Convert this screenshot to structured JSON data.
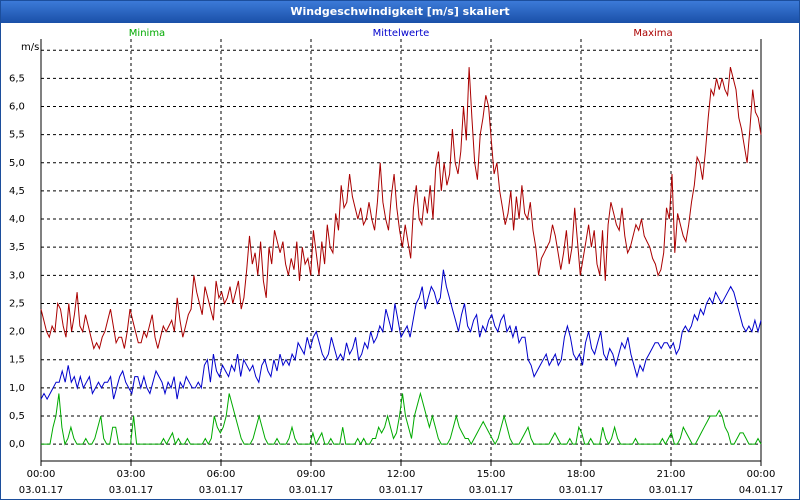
{
  "window": {
    "title": "Windgeschwindigkeit [m/s] skaliert"
  },
  "chart_data": {
    "type": "line",
    "title": "Windgeschwindigkeit [m/s] skaliert",
    "ylabel": "m/s",
    "ylim": [
      -0.3,
      7.2
    ],
    "yticks": [
      {
        "v": 0.0,
        "label": "0,0"
      },
      {
        "v": 0.5,
        "label": "0,5"
      },
      {
        "v": 1.0,
        "label": "1,0"
      },
      {
        "v": 1.5,
        "label": "1,5"
      },
      {
        "v": 2.0,
        "label": "2,0"
      },
      {
        "v": 2.5,
        "label": "2,5"
      },
      {
        "v": 3.0,
        "label": "3,0"
      },
      {
        "v": 3.5,
        "label": "3,5"
      },
      {
        "v": 4.0,
        "label": "4,0"
      },
      {
        "v": 4.5,
        "label": "4,5"
      },
      {
        "v": 5.0,
        "label": "5,0"
      },
      {
        "v": 5.5,
        "label": "5,5"
      },
      {
        "v": 6.0,
        "label": "6,0"
      },
      {
        "v": 6.5,
        "label": "6,5"
      }
    ],
    "xlim": [
      0,
      24
    ],
    "xticks": [
      {
        "h": 0,
        "time": "00:00",
        "date": "03.01.17"
      },
      {
        "h": 3,
        "time": "03:00",
        "date": "03.01.17"
      },
      {
        "h": 6,
        "time": "06:00",
        "date": "03.01.17"
      },
      {
        "h": 9,
        "time": "09:00",
        "date": "03.01.17"
      },
      {
        "h": 12,
        "time": "12:00",
        "date": "03.01.17"
      },
      {
        "h": 15,
        "time": "15:00",
        "date": "03.01.17"
      },
      {
        "h": 18,
        "time": "18:00",
        "date": "03.01.17"
      },
      {
        "h": 21,
        "time": "21:00",
        "date": "03.01.17"
      },
      {
        "h": 24,
        "time": "00:00",
        "date": "04.01.17"
      }
    ],
    "grid": true,
    "legend_position": "top",
    "series": [
      {
        "name": "Minima",
        "color": "#00aa00",
        "values": [
          0.0,
          0.0,
          0.0,
          0.0,
          0.3,
          0.5,
          0.9,
          0.3,
          0.0,
          0.1,
          0.3,
          0.1,
          0.0,
          0.0,
          0.0,
          0.1,
          0.0,
          0.0,
          0.1,
          0.3,
          0.5,
          0.1,
          0.0,
          0.0,
          0.3,
          0.3,
          0.0,
          0.0,
          0.0,
          0.0,
          0.0,
          0.5,
          0.0,
          0.0,
          0.0,
          0.0,
          0.0,
          0.0,
          0.0,
          0.0,
          0.0,
          0.1,
          0.0,
          0.1,
          0.2,
          0.0,
          0.1,
          0.0,
          0.0,
          0.1,
          0.0,
          0.0,
          0.0,
          0.0,
          0.0,
          0.1,
          0.0,
          0.1,
          0.5,
          0.3,
          0.2,
          0.3,
          0.5,
          0.9,
          0.7,
          0.5,
          0.3,
          0.1,
          0.0,
          0.0,
          0.0,
          0.1,
          0.3,
          0.5,
          0.3,
          0.1,
          0.0,
          0.0,
          0.0,
          0.1,
          0.0,
          0.0,
          0.0,
          0.1,
          0.3,
          0.1,
          0.0,
          0.0,
          0.0,
          0.0,
          0.0,
          0.2,
          0.0,
          0.1,
          0.2,
          0.0,
          0.0,
          0.1,
          0.0,
          0.0,
          0.0,
          0.3,
          0.0,
          0.0,
          0.0,
          0.0,
          0.1,
          0.0,
          0.1,
          0.0,
          0.0,
          0.1,
          0.1,
          0.3,
          0.2,
          0.3,
          0.5,
          0.3,
          0.1,
          0.2,
          0.5,
          0.9,
          0.5,
          0.3,
          0.1,
          0.5,
          0.7,
          0.9,
          0.7,
          0.5,
          0.3,
          0.5,
          0.3,
          0.1,
          0.0,
          0.0,
          0.0,
          0.1,
          0.3,
          0.5,
          0.3,
          0.2,
          0.1,
          0.1,
          0.0,
          0.1,
          0.2,
          0.3,
          0.4,
          0.3,
          0.2,
          0.1,
          0.0,
          0.1,
          0.3,
          0.5,
          0.3,
          0.1,
          0.0,
          0.0,
          0.0,
          0.1,
          0.2,
          0.3,
          0.1,
          0.0,
          0.0,
          0.0,
          0.0,
          0.0,
          0.0,
          0.1,
          0.2,
          0.1,
          0.0,
          0.0,
          0.0,
          0.1,
          0.0,
          0.0,
          0.3,
          0.2,
          0.0,
          0.0,
          0.1,
          0.0,
          0.0,
          0.0,
          0.3,
          0.1,
          0.0,
          0.1,
          0.3,
          0.1,
          0.0,
          0.0,
          0.0,
          0.0,
          0.0,
          0.1,
          0.0,
          0.0,
          0.0,
          0.0,
          0.0,
          0.0,
          0.0,
          0.0,
          0.1,
          0.0,
          0.1,
          0.2,
          0.0,
          0.0,
          0.1,
          0.3,
          0.2,
          0.1,
          0.0,
          0.0,
          0.1,
          0.2,
          0.3,
          0.4,
          0.5,
          0.5,
          0.5,
          0.6,
          0.5,
          0.3,
          0.2,
          0.0,
          0.0,
          0.1,
          0.2,
          0.2,
          0.1,
          0.0,
          0.0,
          0.0,
          0.1,
          0.0
        ]
      },
      {
        "name": "Mittelwerte",
        "color": "#0000cc",
        "values": [
          0.8,
          0.9,
          0.8,
          0.9,
          1.0,
          1.1,
          1.1,
          1.3,
          1.1,
          1.4,
          1.1,
          1.2,
          1.0,
          1.2,
          1.0,
          1.1,
          1.2,
          0.9,
          1.0,
          1.1,
          1.0,
          1.1,
          1.1,
          1.2,
          0.8,
          1.0,
          1.2,
          1.3,
          1.1,
          1.0,
          0.9,
          1.2,
          1.2,
          1.0,
          1.2,
          1.0,
          0.9,
          1.1,
          1.3,
          1.2,
          1.1,
          0.9,
          1.1,
          1.0,
          1.2,
          0.8,
          1.1,
          1.0,
          1.2,
          1.1,
          1.0,
          1.0,
          1.1,
          1.0,
          1.4,
          1.5,
          1.1,
          1.6,
          1.3,
          1.2,
          1.4,
          1.3,
          1.2,
          1.4,
          1.3,
          1.6,
          1.2,
          1.5,
          1.4,
          1.3,
          1.4,
          1.2,
          1.1,
          1.4,
          1.5,
          1.3,
          1.2,
          1.5,
          1.3,
          1.6,
          1.4,
          1.5,
          1.4,
          1.6,
          1.5,
          1.8,
          1.7,
          1.6,
          1.9,
          1.7,
          1.9,
          2.0,
          1.8,
          1.6,
          1.5,
          1.6,
          1.9,
          1.7,
          1.5,
          1.6,
          1.5,
          1.8,
          1.6,
          1.7,
          1.9,
          1.5,
          1.6,
          1.8,
          1.7,
          2.0,
          1.8,
          1.9,
          2.1,
          2.0,
          2.4,
          2.2,
          2.0,
          2.5,
          2.2,
          1.9,
          2.0,
          2.1,
          1.9,
          2.2,
          2.5,
          2.6,
          2.8,
          2.4,
          2.6,
          2.8,
          2.7,
          2.5,
          2.6,
          3.1,
          2.8,
          2.6,
          2.4,
          2.2,
          2.0,
          2.3,
          2.5,
          2.1,
          2.0,
          2.2,
          2.3,
          1.9,
          2.1,
          2.0,
          2.2,
          2.3,
          2.1,
          2.0,
          2.2,
          2.3,
          2.0,
          2.1,
          1.9,
          2.1,
          1.8,
          1.9,
          1.9,
          1.5,
          1.4,
          1.2,
          1.3,
          1.4,
          1.5,
          1.6,
          1.4,
          1.5,
          1.6,
          1.4,
          1.5,
          1.9,
          2.1,
          1.9,
          1.6,
          1.5,
          1.6,
          1.4,
          1.8,
          2.0,
          1.7,
          1.6,
          1.8,
          2.0,
          1.6,
          1.5,
          1.7,
          1.6,
          1.4,
          1.6,
          1.8,
          1.7,
          1.9,
          1.6,
          1.4,
          1.2,
          1.4,
          1.3,
          1.5,
          1.6,
          1.7,
          1.8,
          1.8,
          1.7,
          1.8,
          1.8,
          1.7,
          1.8,
          1.6,
          1.7,
          2.0,
          2.1,
          2.0,
          2.1,
          2.3,
          2.2,
          2.4,
          2.3,
          2.5,
          2.6,
          2.5,
          2.7,
          2.6,
          2.5,
          2.6,
          2.7,
          2.8,
          2.7,
          2.5,
          2.3,
          2.1,
          2.0,
          2.1,
          2.0,
          2.2,
          2.0,
          2.2
        ]
      },
      {
        "name": "Maxima",
        "color": "#aa0000",
        "values": [
          2.4,
          2.2,
          2.0,
          1.9,
          2.1,
          2.0,
          2.5,
          2.4,
          2.1,
          1.9,
          2.5,
          2.0,
          2.3,
          2.7,
          2.1,
          2.0,
          2.3,
          2.1,
          1.9,
          1.7,
          1.8,
          1.7,
          1.9,
          2.0,
          2.2,
          2.4,
          2.1,
          1.8,
          1.9,
          1.9,
          1.7,
          2.0,
          2.4,
          2.2,
          2.0,
          1.8,
          1.8,
          2.0,
          1.9,
          2.1,
          2.3,
          1.9,
          1.7,
          1.9,
          2.1,
          2.0,
          2.1,
          2.2,
          2.0,
          2.6,
          2.2,
          1.9,
          2.1,
          2.3,
          2.4,
          3.0,
          2.7,
          2.5,
          2.3,
          2.8,
          2.6,
          2.4,
          2.2,
          2.9,
          2.6,
          2.7,
          2.5,
          2.6,
          2.8,
          2.5,
          2.7,
          2.9,
          2.4,
          2.6,
          3.1,
          3.7,
          3.2,
          3.4,
          3.0,
          3.6,
          2.9,
          2.6,
          3.5,
          3.2,
          3.8,
          3.6,
          3.4,
          3.6,
          3.2,
          3.0,
          3.3,
          3.1,
          3.6,
          2.9,
          3.5,
          3.2,
          3.3,
          3.0,
          3.8,
          3.4,
          3.0,
          3.6,
          3.2,
          3.9,
          3.5,
          3.4,
          4.1,
          3.8,
          4.6,
          4.2,
          4.3,
          4.8,
          4.4,
          4.2,
          4.0,
          4.2,
          3.9,
          4.0,
          4.3,
          4.0,
          3.8,
          4.3,
          5.0,
          4.3,
          4.0,
          3.8,
          4.4,
          4.8,
          4.2,
          3.8,
          3.5,
          3.9,
          3.6,
          3.3,
          4.2,
          4.6,
          4.0,
          3.9,
          4.4,
          4.1,
          4.6,
          4.0,
          4.9,
          5.2,
          4.5,
          5.0,
          4.6,
          4.8,
          5.6,
          5.0,
          4.8,
          5.2,
          6.0,
          5.4,
          6.7,
          5.8,
          5.0,
          4.7,
          5.5,
          5.8,
          6.2,
          6.0,
          5.4,
          4.8,
          5.0,
          4.5,
          4.2,
          3.9,
          4.1,
          4.5,
          3.8,
          4.4,
          4.0,
          4.6,
          4.1,
          4.0,
          4.3,
          3.8,
          3.5,
          3.0,
          3.3,
          3.4,
          3.5,
          3.6,
          3.9,
          3.7,
          3.4,
          3.1,
          3.4,
          3.8,
          3.2,
          3.5,
          4.2,
          3.6,
          3.0,
          3.3,
          3.6,
          3.9,
          3.5,
          3.8,
          3.2,
          3.0,
          3.8,
          2.9,
          3.9,
          4.3,
          4.1,
          3.9,
          3.8,
          4.2,
          3.7,
          3.4,
          3.5,
          3.7,
          3.9,
          3.8,
          4.0,
          3.7,
          3.6,
          3.5,
          3.3,
          3.2,
          3.0,
          3.1,
          3.4,
          4.2,
          4.0,
          4.8,
          3.4,
          4.1,
          3.9,
          3.7,
          3.6,
          3.9,
          4.3,
          4.6,
          5.1,
          5.0,
          4.7,
          5.2,
          5.8,
          6.3,
          6.2,
          6.5,
          6.3,
          6.5,
          6.3,
          6.2,
          6.7,
          6.5,
          6.3,
          5.8,
          5.6,
          5.3,
          5.0,
          5.6,
          6.3,
          5.9,
          5.8,
          5.5
        ]
      }
    ]
  }
}
